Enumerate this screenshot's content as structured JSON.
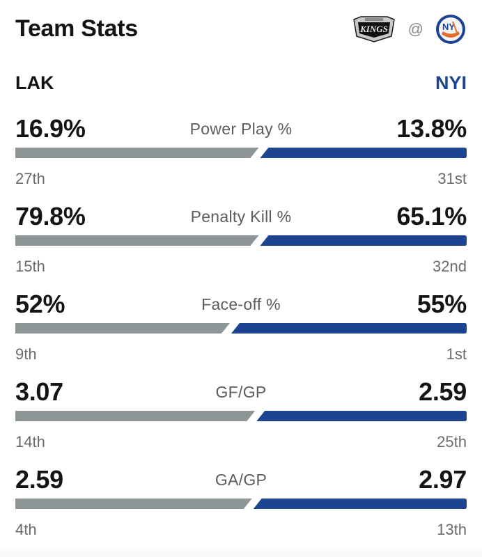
{
  "header": {
    "title": "Team Stats",
    "at_separator": "@",
    "away_logo_icon": "la-kings-logo-icon",
    "home_logo_icon": "ny-islanders-logo-icon"
  },
  "teams": {
    "away": "LAK",
    "home": "NYI"
  },
  "colors": {
    "away_bar": "#8e9596",
    "home_bar": "#1d4491",
    "home_team_text": "#1d4491"
  },
  "stats": [
    {
      "label": "Power Play %",
      "away_value": "16.9%",
      "home_value": "13.8%",
      "away_rank": "27th",
      "home_rank": "31st",
      "away_share": 0.55
    },
    {
      "label": "Penalty Kill %",
      "away_value": "79.8%",
      "home_value": "65.1%",
      "away_rank": "15th",
      "home_rank": "32nd",
      "away_share": 0.55
    },
    {
      "label": "Face-off %",
      "away_value": "52%",
      "home_value": "55%",
      "away_rank": "9th",
      "home_rank": "1st",
      "away_share": 0.486
    },
    {
      "label": "GF/GP",
      "away_value": "3.07",
      "home_value": "2.59",
      "away_rank": "14th",
      "home_rank": "25th",
      "away_share": 0.542
    },
    {
      "label": "GA/GP",
      "away_value": "2.59",
      "home_value": "2.97",
      "away_rank": "4th",
      "home_rank": "13th",
      "away_share": 0.535
    }
  ]
}
